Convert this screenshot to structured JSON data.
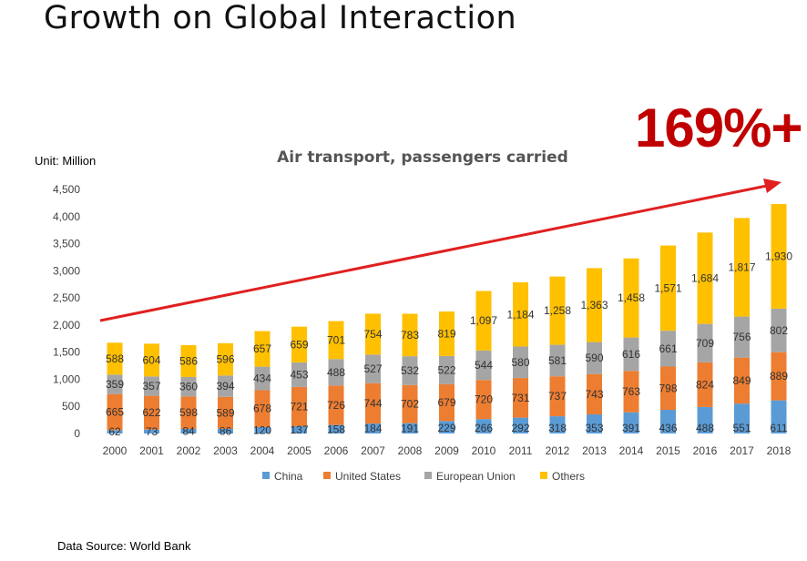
{
  "slide": {
    "title": "Growth on Global Interaction",
    "growth_label": "169%+",
    "unit_label": "Unit: Million",
    "source": "Data Source: World Bank"
  },
  "chart_data": {
    "type": "bar",
    "stacked": true,
    "title": "Air transport, passengers carried",
    "categories": [
      "2000",
      "2001",
      "2002",
      "2003",
      "2004",
      "2005",
      "2006",
      "2007",
      "2008",
      "2009",
      "2010",
      "2011",
      "2012",
      "2013",
      "2014",
      "2015",
      "2016",
      "2017",
      "2018"
    ],
    "series": [
      {
        "name": "China",
        "color": "#5b9bd5",
        "values": [
          62,
          73,
          84,
          86,
          120,
          137,
          158,
          184,
          191,
          229,
          266,
          292,
          318,
          353,
          391,
          436,
          488,
          551,
          611
        ]
      },
      {
        "name": "United States",
        "color": "#ed7d31",
        "values": [
          665,
          622,
          598,
          589,
          678,
          721,
          726,
          744,
          702,
          679,
          720,
          731,
          737,
          743,
          763,
          798,
          824,
          849,
          889
        ]
      },
      {
        "name": "European Union",
        "color": "#a5a5a5",
        "values": [
          359,
          357,
          360,
          394,
          434,
          453,
          488,
          527,
          532,
          522,
          544,
          580,
          581,
          590,
          616,
          661,
          709,
          756,
          802
        ]
      },
      {
        "name": "Others",
        "color": "#ffc000",
        "values": [
          588,
          604,
          586,
          596,
          657,
          659,
          701,
          754,
          783,
          819,
          1097,
          1184,
          1258,
          1363,
          1458,
          1571,
          1684,
          1817,
          1930
        ]
      }
    ],
    "yticks": [
      "0",
      "500",
      "1,000",
      "1,500",
      "2,000",
      "2,500",
      "3,000",
      "3,500",
      "4,000",
      "4,500"
    ],
    "ylim": [
      0,
      4500
    ],
    "ytick_step": 500,
    "grid": false,
    "legend": "bottom",
    "trend_arrow_color": "#e02020"
  }
}
